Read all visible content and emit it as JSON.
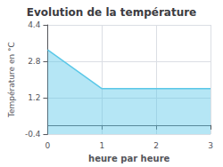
{
  "chart_data": {
    "type": "area",
    "title": "Evolution de la température",
    "xlabel": "heure par heure",
    "ylabel": "Température en °C",
    "x": [
      0,
      1,
      3
    ],
    "values": [
      3.3,
      1.6,
      1.6
    ],
    "color": "#5bc8e8",
    "xlim": [
      0,
      3
    ],
    "ylim": [
      -0.4,
      4.4
    ],
    "xticks": [
      0,
      1,
      2,
      3
    ],
    "yticks": [
      -0.4,
      1.2,
      2.8,
      4.4
    ],
    "grid": true
  }
}
